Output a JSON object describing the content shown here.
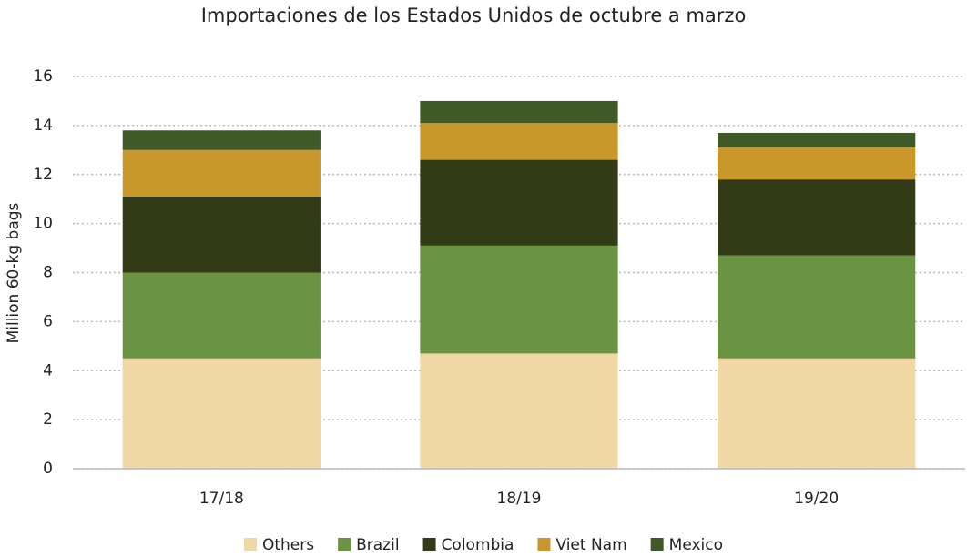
{
  "chart_data": {
    "type": "stacked_bar",
    "title": "Importaciones de los Estados Unidos de octubre a marzo",
    "ylabel": "Million 60-kg bags",
    "categories": [
      "17/18",
      "18/19",
      "19/20"
    ],
    "series": [
      {
        "name": "Others",
        "color": "#f0d7a6",
        "values": [
          4.5,
          4.7,
          4.5
        ]
      },
      {
        "name": "Brazil",
        "color": "#6a9442",
        "values": [
          3.5,
          4.4,
          4.2
        ]
      },
      {
        "name": "Colombia",
        "color": "#333a16",
        "values": [
          3.1,
          3.5,
          3.1
        ]
      },
      {
        "name": "Viet Nam",
        "color": "#c9972a",
        "values": [
          1.9,
          1.5,
          1.3
        ]
      },
      {
        "name": "Mexico",
        "color": "#3f5a26",
        "values": [
          0.8,
          0.9,
          0.6
        ]
      }
    ],
    "ylim": [
      0,
      16
    ],
    "yticks": [
      0,
      2,
      4,
      6,
      8,
      10,
      12,
      14,
      16
    ],
    "grid": true,
    "legend": "bottom"
  }
}
